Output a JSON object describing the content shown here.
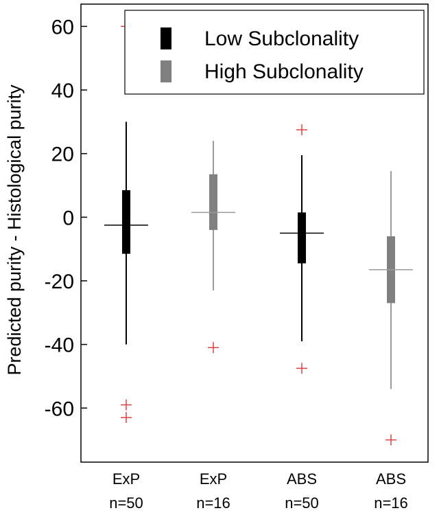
{
  "chart_data": {
    "type": "box",
    "ylabel": "Predicted purity - Histological purity",
    "ylim": [
      -77,
      67
    ],
    "yticks": [
      -60,
      -40,
      -20,
      0,
      20,
      40,
      60
    ],
    "legend": {
      "position": "top-right",
      "entries": [
        {
          "name": "Low Subclonality",
          "color": "#000000"
        },
        {
          "name": "High Subclonality",
          "color": "#808080"
        }
      ]
    },
    "boxes": [
      {
        "label": "ExP",
        "n_label": "n=50",
        "group": "Low Subclonality",
        "color": "#000000",
        "whisker_low": -40,
        "q1": -11.5,
        "median": -2.5,
        "q3": 8.5,
        "whisker_high": 30,
        "outliers": [
          60,
          -59,
          -63
        ]
      },
      {
        "label": "ExP",
        "n_label": "n=16",
        "group": "High Subclonality",
        "color": "#808080",
        "whisker_low": -23,
        "q1": -4,
        "median": 1.5,
        "q3": 13.5,
        "whisker_high": 24,
        "outliers": [
          -41
        ]
      },
      {
        "label": "ABS",
        "n_label": "n=50",
        "group": "Low Subclonality",
        "color": "#000000",
        "whisker_low": -39,
        "q1": -14.5,
        "median": -5,
        "q3": 1.5,
        "whisker_high": 19.5,
        "outliers": [
          27.5,
          -47.5
        ]
      },
      {
        "label": "ABS",
        "n_label": "n=16",
        "group": "High Subclonality",
        "color": "#808080",
        "whisker_low": -54,
        "q1": -27,
        "median": -16.5,
        "q3": -6,
        "whisker_high": 14.5,
        "outliers": [
          -70
        ]
      }
    ],
    "outlier_color": "#e04040"
  }
}
